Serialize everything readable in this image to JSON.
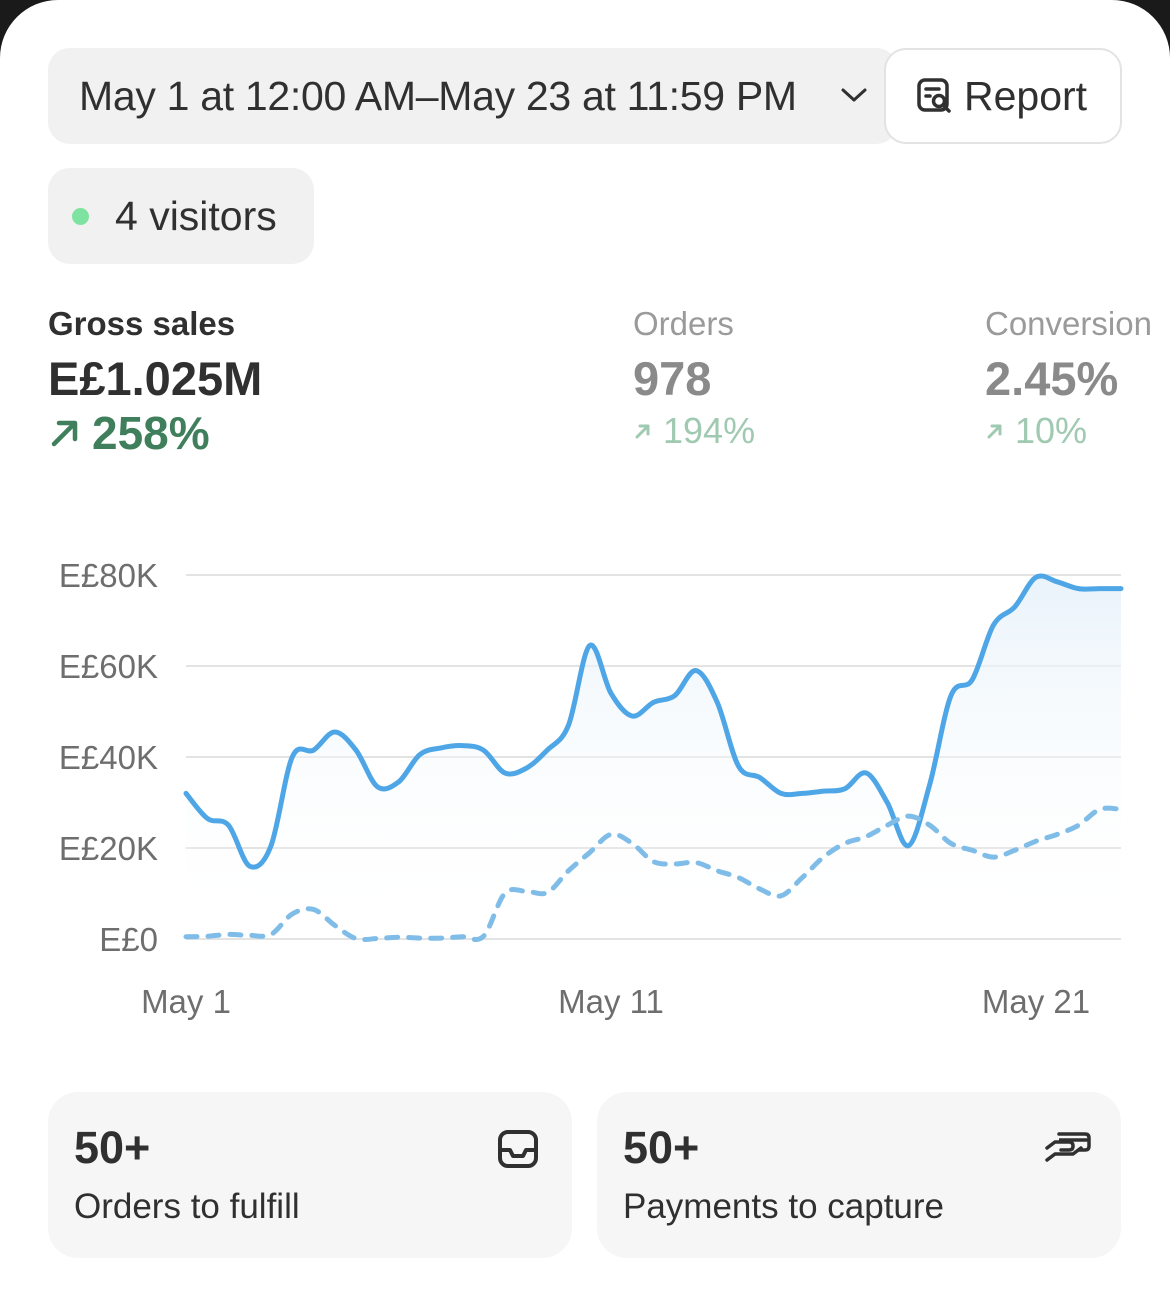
{
  "date_range": {
    "label": "May 1 at 12:00 AM–May 23 at 11:59 PM"
  },
  "report_button": {
    "label": "Report"
  },
  "visitors": {
    "label": "4 visitors",
    "dot_color": "#7ee3a0"
  },
  "metrics": [
    {
      "label": "Gross sales",
      "value": "E£1.025M",
      "delta": "258%",
      "active": true
    },
    {
      "label": "Orders",
      "value": "978",
      "delta": "194%",
      "active": false
    },
    {
      "label": "Conversion",
      "value": "2.45%",
      "delta": "10%",
      "active": false
    }
  ],
  "chart_data": {
    "type": "line",
    "y_tick_labels": [
      "E£0",
      "E£20K",
      "E£40K",
      "E£60K",
      "E£80K"
    ],
    "x_tick_labels": [
      "May 1",
      "May 11",
      "May 21"
    ],
    "ylim": [
      0,
      80000
    ],
    "x_domain": [
      1,
      23
    ],
    "grid": true,
    "series": [
      {
        "style": "solid",
        "color": "#4ea6e6",
        "x": [
          1,
          1.5,
          2,
          2.5,
          3,
          3.5,
          4,
          4.5,
          5,
          5.5,
          6,
          6.5,
          7,
          7.5,
          8,
          8.5,
          9,
          9.5,
          10,
          10.5,
          11,
          11.5,
          12,
          12.5,
          13,
          13.5,
          14,
          14.5,
          15,
          15.5,
          16,
          16.5,
          17,
          17.5,
          18,
          18.5,
          19,
          19.5,
          20,
          20.5,
          21,
          21.5,
          22,
          22.5,
          23
        ],
        "values": [
          32000,
          26500,
          25000,
          16000,
          20500,
          40000,
          41500,
          45500,
          41500,
          33500,
          34500,
          40500,
          42000,
          42500,
          41500,
          36500,
          37500,
          41500,
          47000,
          64500,
          54000,
          49000,
          52000,
          53500,
          59000,
          52000,
          38000,
          35500,
          32000,
          32000,
          32500,
          33000,
          36500,
          30000,
          20500,
          34000,
          53500,
          57000,
          69000,
          73000,
          79500,
          78500,
          77000,
          77000,
          77000
        ]
      },
      {
        "style": "dashed",
        "color": "#7fbde8",
        "x": [
          1,
          1.5,
          2,
          2.5,
          3,
          3.5,
          4,
          4.5,
          5,
          5.5,
          6,
          6.5,
          7,
          7.5,
          8,
          8.5,
          9,
          9.5,
          10,
          10.5,
          11,
          11.5,
          12,
          12.5,
          13,
          13.5,
          14,
          14.5,
          15,
          15.5,
          16,
          16.5,
          17,
          17.5,
          18,
          18.5,
          19,
          19.5,
          20,
          20.5,
          21,
          21.5,
          22,
          22.5,
          23
        ],
        "values": [
          500,
          600,
          1000,
          800,
          1000,
          5500,
          6500,
          3000,
          100,
          100,
          400,
          200,
          200,
          500,
          600,
          10000,
          10500,
          10200,
          15000,
          19000,
          23000,
          21000,
          17000,
          16500,
          16800,
          15000,
          13500,
          11000,
          9500,
          13500,
          18000,
          21000,
          22500,
          25000,
          27000,
          25000,
          21000,
          19500,
          18000,
          19500,
          21500,
          23000,
          25000,
          28500,
          28500
        ]
      }
    ]
  },
  "tiles": [
    {
      "value": "50+",
      "label": "Orders to fulfill",
      "icon": "inbox-icon"
    },
    {
      "value": "50+",
      "label": "Payments to capture",
      "icon": "hand-card-icon"
    }
  ]
}
